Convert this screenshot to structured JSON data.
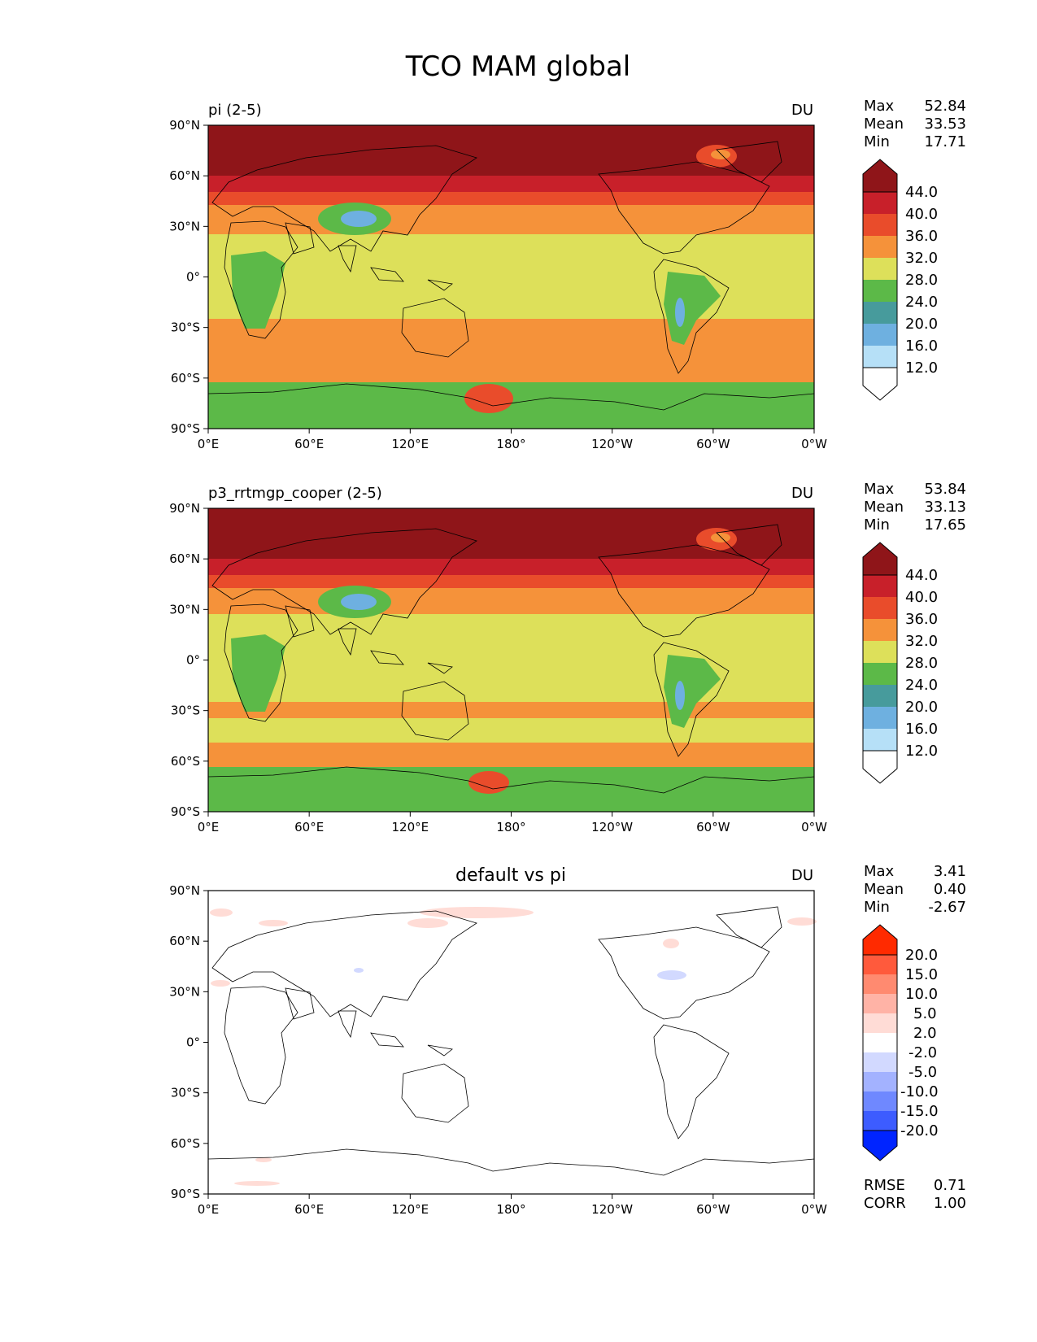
{
  "title": "TCO MAM global",
  "axes": {
    "lat_ticks": [
      "90°N",
      "60°N",
      "30°N",
      "0°",
      "30°S",
      "60°S",
      "90°S"
    ],
    "lon_ticks": [
      "0°E",
      "60°E",
      "120°E",
      "180°",
      "120°W",
      "60°W",
      "0°W"
    ]
  },
  "panels": [
    {
      "left_title": "pi (2-5)",
      "center_title": "",
      "units": "DU",
      "stats": [
        {
          "label": "Max",
          "value": "52.84"
        },
        {
          "label": "Mean",
          "value": "33.53"
        },
        {
          "label": "Min",
          "value": "17.71"
        }
      ],
      "colorbar": {
        "labels": [
          "44.0",
          "40.0",
          "36.0",
          "32.0",
          "28.0",
          "24.0",
          "20.0",
          "16.0",
          "12.0"
        ],
        "colors": [
          "#8f1519",
          "#c8202a",
          "#e94c2b",
          "#f5923a",
          "#dde05a",
          "#5cb948",
          "#479b9c",
          "#6eb0e0",
          "#b6e0f7",
          "#ffffff"
        ]
      }
    },
    {
      "left_title": "p3_rrtmgp_cooper (2-5)",
      "center_title": "",
      "units": "DU",
      "stats": [
        {
          "label": "Max",
          "value": "53.84"
        },
        {
          "label": "Mean",
          "value": "33.13"
        },
        {
          "label": "Min",
          "value": "17.65"
        }
      ],
      "colorbar": {
        "labels": [
          "44.0",
          "40.0",
          "36.0",
          "32.0",
          "28.0",
          "24.0",
          "20.0",
          "16.0",
          "12.0"
        ],
        "colors": [
          "#8f1519",
          "#c8202a",
          "#e94c2b",
          "#f5923a",
          "#dde05a",
          "#5cb948",
          "#479b9c",
          "#6eb0e0",
          "#b6e0f7",
          "#ffffff"
        ]
      }
    },
    {
      "left_title": "",
      "center_title": "default vs pi",
      "units": "DU",
      "stats": [
        {
          "label": "Max",
          "value": "3.41"
        },
        {
          "label": "Mean",
          "value": "0.40"
        },
        {
          "label": "Min",
          "value": "-2.67"
        }
      ],
      "colorbar": {
        "labels": [
          "20.0",
          "15.0",
          "10.0",
          "5.0",
          "2.0",
          "-2.0",
          "-5.0",
          "-10.0",
          "-15.0",
          "-20.0"
        ],
        "colors": [
          "#ff2a00",
          "#ff5a3c",
          "#ff8a70",
          "#ffb3a6",
          "#ffdcd6",
          "#ffffff",
          "#d2d9ff",
          "#a3b2ff",
          "#6f88ff",
          "#3d5cff",
          "#0024ff"
        ]
      },
      "bottom_stats": [
        {
          "label": "RMSE",
          "value": "0.71"
        },
        {
          "label": "CORR",
          "value": "1.00"
        }
      ]
    }
  ]
}
